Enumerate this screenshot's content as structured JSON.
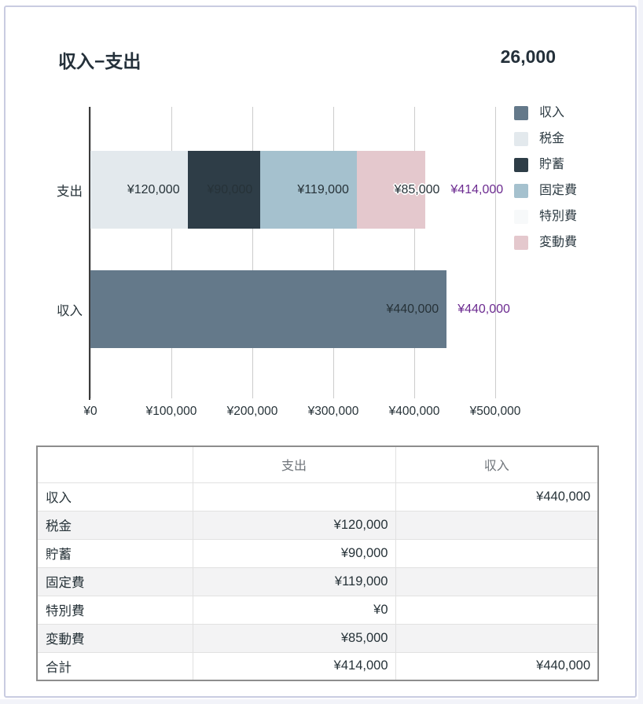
{
  "header": {
    "title": "収入−支出",
    "value": "26,000"
  },
  "chart_data": {
    "type": "bar",
    "orientation": "horizontal",
    "stacked": true,
    "title": "収入−支出",
    "categories": [
      "支出",
      "収入"
    ],
    "series": [
      {
        "name": "収入",
        "color": "#64798a",
        "values": [
          null,
          440000
        ]
      },
      {
        "name": "税金",
        "color": "#e3e9ed",
        "values": [
          120000,
          null
        ]
      },
      {
        "name": "貯蓄",
        "color": "#2e3d47",
        "values": [
          90000,
          null
        ]
      },
      {
        "name": "固定費",
        "color": "#a5c1ce",
        "values": [
          119000,
          null
        ]
      },
      {
        "name": "特別費",
        "color": "#f7f9fa",
        "values": [
          0,
          null
        ]
      },
      {
        "name": "変動費",
        "color": "#e4c8cd",
        "values": [
          85000,
          null
        ]
      }
    ],
    "totals": [
      414000,
      440000
    ],
    "total_labels": [
      "¥414,000",
      "¥440,000"
    ],
    "currency_prefix": "¥",
    "xaxis": {
      "min": 0,
      "max": 500000,
      "ticks": [
        "¥0",
        "¥100,000",
        "¥200,000",
        "¥300,000",
        "¥400,000",
        "¥500,000"
      ]
    },
    "grid": true,
    "legend_position": "right",
    "annotation_color": "#263238",
    "total_color": "#6c2b90"
  },
  "table": {
    "headers": [
      "",
      "支出",
      "収入"
    ],
    "rows": [
      [
        "収入",
        "",
        "¥440,000"
      ],
      [
        "税金",
        "¥120,000",
        ""
      ],
      [
        "貯蓄",
        "¥90,000",
        ""
      ],
      [
        "固定費",
        "¥119,000",
        ""
      ],
      [
        "特別費",
        "¥0",
        ""
      ],
      [
        "変動費",
        "¥85,000",
        ""
      ],
      [
        "合計",
        "¥414,000",
        "¥440,000"
      ]
    ]
  },
  "colors": {
    "card_border": "#c9cce1",
    "gridline": "#cccccc",
    "axis": "#3c3c3c",
    "table_outer_border": "#8d8d8d",
    "table_stripe": "#f3f3f4",
    "header_text": "#6f747a"
  }
}
